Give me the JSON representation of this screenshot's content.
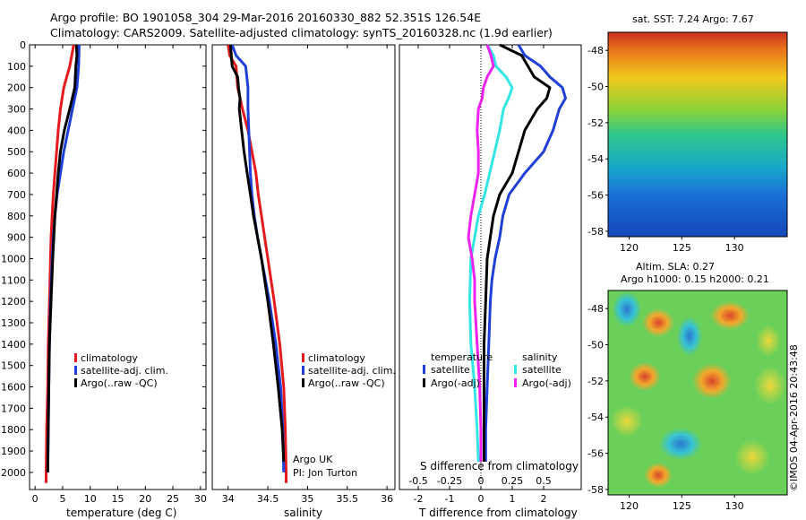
{
  "header": {
    "line1": "Argo profile: BO 1901058_304 29-Mar-2016 20160330_882 52.351S 126.54E",
    "line2": "Climatology: CARS2009. Satellite-adjusted climatology: synTS_20160328.nc (1.9d earlier)"
  },
  "colors": {
    "climatology": "#e41a1c",
    "satellite": "#1f3fd6",
    "argo": "#000000",
    "sat_s": "#33e6e6",
    "argo_s": "#ee22ee"
  },
  "chart_data": [
    {
      "type": "line",
      "id": "temperature",
      "xlabel": "temperature (deg C)",
      "ylabel": "",
      "xlim": [
        -1,
        31
      ],
      "ylim": [
        2080,
        0
      ],
      "x_ticks": [
        0,
        5,
        10,
        15,
        20,
        25,
        30
      ],
      "y_ticks": [
        0,
        100,
        200,
        300,
        400,
        500,
        600,
        700,
        800,
        900,
        1000,
        1100,
        1200,
        1300,
        1400,
        1500,
        1600,
        1700,
        1800,
        1900,
        2000
      ],
      "legend": [
        "climatology",
        "satellite-adj. clim.",
        "Argo(..raw -QC)"
      ],
      "series": [
        {
          "name": "climatology",
          "color": "#e41a1c",
          "depth": [
            0,
            100,
            200,
            300,
            400,
            500,
            600,
            700,
            800,
            900,
            1000,
            1200,
            1400,
            1600,
            1700,
            1800,
            2000,
            2050
          ],
          "values": [
            7.0,
            6.3,
            5.2,
            4.6,
            4.2,
            3.9,
            3.6,
            3.3,
            3.1,
            2.9,
            2.8,
            2.6,
            2.4,
            2.3,
            2.2,
            2.1,
            2.0,
            2.0
          ]
        },
        {
          "name": "satellite-adj. clim.",
          "color": "#1f3fd6",
          "depth": [
            0,
            100,
            200,
            300,
            400,
            500,
            600,
            700,
            800,
            900,
            1000,
            1200,
            1400,
            1600,
            1800,
            2000
          ],
          "values": [
            8.0,
            7.9,
            7.6,
            6.8,
            6.0,
            5.2,
            4.6,
            4.0,
            3.6,
            3.3,
            3.1,
            2.8,
            2.6,
            2.5,
            2.4,
            2.3
          ]
        },
        {
          "name": "Argo(..raw -QC)",
          "color": "#000000",
          "depth": [
            0,
            50,
            100,
            200,
            300,
            400,
            500,
            600,
            700,
            800,
            900,
            1000,
            1200,
            1400,
            1600,
            1800,
            2000
          ],
          "values": [
            7.5,
            7.6,
            7.4,
            7.2,
            6.3,
            5.3,
            4.6,
            4.2,
            3.9,
            3.6,
            3.4,
            3.2,
            2.9,
            2.6,
            2.5,
            2.4,
            2.3
          ]
        }
      ]
    },
    {
      "type": "line",
      "id": "salinity",
      "xlabel": "salinity",
      "ylabel": "",
      "xlim": [
        33.8,
        36.1
      ],
      "ylim": [
        2080,
        0
      ],
      "x_ticks": [
        34,
        34.5,
        35,
        35.5,
        36
      ],
      "x_tick_labels": [
        "34",
        "34.5",
        "35",
        "35.5",
        "36"
      ],
      "legend": [
        "climatology",
        "satellite-adj. clim.",
        "Argo(..raw -QC)"
      ],
      "annotations": [
        "Argo UK",
        "PI: Jon Turton"
      ],
      "series": [
        {
          "name": "climatology",
          "color": "#e41a1c",
          "depth": [
            0,
            50,
            100,
            200,
            300,
            400,
            500,
            600,
            700,
            800,
            900,
            1000,
            1200,
            1400,
            1600,
            1800,
            2000,
            2050
          ],
          "values": [
            34.0,
            34.02,
            34.1,
            34.12,
            34.18,
            34.25,
            34.3,
            34.35,
            34.38,
            34.42,
            34.46,
            34.5,
            34.58,
            34.65,
            34.7,
            34.72,
            34.73,
            34.73
          ]
        },
        {
          "name": "satellite-adj. clim.",
          "color": "#1f3fd6",
          "depth": [
            0,
            50,
            100,
            200,
            300,
            400,
            500,
            600,
            700,
            800,
            900,
            1000,
            1200,
            1400,
            1600,
            1800,
            2000
          ],
          "values": [
            34.05,
            34.1,
            34.22,
            34.25,
            34.25,
            34.26,
            34.27,
            34.28,
            34.3,
            34.33,
            34.37,
            34.42,
            34.52,
            34.6,
            34.66,
            34.69,
            34.7
          ]
        },
        {
          "name": "Argo(..raw -QC)",
          "color": "#000000",
          "depth": [
            0,
            50,
            100,
            150,
            200,
            250,
            300,
            400,
            500,
            600,
            700,
            800,
            900,
            1000,
            1200,
            1400,
            1600,
            1800,
            1950
          ],
          "values": [
            34.03,
            34.04,
            34.05,
            34.12,
            34.13,
            34.15,
            34.14,
            34.17,
            34.2,
            34.24,
            34.28,
            34.32,
            34.37,
            34.42,
            34.5,
            34.57,
            34.63,
            34.68,
            34.7
          ]
        }
      ]
    },
    {
      "type": "line",
      "id": "differences",
      "xlabel": "T difference from climatology",
      "x2label": "S difference from climatology",
      "xlim": [
        -2.6,
        3.2
      ],
      "ylim": [
        2080,
        0
      ],
      "x_ticks": [
        -2,
        -1,
        0,
        1,
        2
      ],
      "x2_ticks": [
        -0.5,
        -0.25,
        0,
        0.25,
        0.5
      ],
      "x2_tick_labels": [
        "-0.5",
        "-0.25",
        "0",
        "0.25",
        "0.5"
      ],
      "legend_temperature": {
        "title": "temperature",
        "items": [
          "satellite",
          "Argo(-adj)"
        ]
      },
      "legend_salinity": {
        "title": "salinity",
        "items": [
          "satellite",
          "Argo(-adj)"
        ]
      },
      "series": [
        {
          "name": "T satellite",
          "color": "#1f3fd6",
          "depth": [
            0,
            50,
            100,
            150,
            200,
            250,
            300,
            400,
            500,
            600,
            700,
            800,
            900,
            1000,
            1100,
            1200,
            1400,
            1600,
            1800,
            1950
          ],
          "values": [
            1.2,
            1.4,
            1.9,
            2.2,
            2.6,
            2.7,
            2.5,
            2.3,
            2.0,
            1.4,
            0.9,
            0.7,
            0.6,
            0.45,
            0.35,
            0.3,
            0.25,
            0.2,
            0.15,
            0.15
          ]
        },
        {
          "name": "T Argo(-adj)",
          "color": "#000000",
          "depth": [
            0,
            50,
            100,
            150,
            200,
            250,
            300,
            400,
            500,
            600,
            700,
            800,
            900,
            1000,
            1200,
            1400,
            1600,
            1800,
            1950
          ],
          "values": [
            0.6,
            1.3,
            1.5,
            1.7,
            2.2,
            2.1,
            1.8,
            1.4,
            1.2,
            1.0,
            0.6,
            0.4,
            0.3,
            0.2,
            0.15,
            0.1,
            0.1,
            0.1,
            0.1
          ]
        },
        {
          "name": "S satellite",
          "color": "#33e6e6",
          "depth": [
            0,
            50,
            100,
            150,
            200,
            250,
            300,
            400,
            500,
            600,
            700,
            800,
            900,
            1000,
            1200,
            1400,
            1600,
            1800,
            1950
          ],
          "values": [
            0.05,
            0.1,
            0.12,
            0.2,
            0.25,
            0.22,
            0.18,
            0.15,
            0.11,
            0.07,
            0.03,
            -0.02,
            -0.05,
            -0.08,
            -0.09,
            -0.08,
            -0.05,
            -0.03,
            -0.02
          ]
        },
        {
          "name": "S Argo(-adj)",
          "color": "#ee22ee",
          "depth": [
            0,
            50,
            100,
            150,
            200,
            250,
            300,
            400,
            500,
            600,
            700,
            800,
            900,
            1000,
            1100,
            1200,
            1400,
            1600,
            1800,
            1950
          ],
          "values": [
            0.05,
            0.08,
            0.1,
            0.05,
            0.02,
            0.01,
            -0.02,
            -0.03,
            -0.02,
            -0.02,
            -0.05,
            -0.08,
            -0.1,
            -0.07,
            -0.05,
            -0.05,
            -0.03,
            -0.01,
            0.0,
            0.0
          ]
        }
      ]
    }
  ],
  "sst_map": {
    "title": "sat. SST: 7.24  Argo: 7.67",
    "x_ticks": [
      120,
      125,
      130
    ],
    "y_ticks": [
      -48,
      -50,
      -52,
      -54,
      -56,
      -58
    ]
  },
  "sla_map": {
    "title_line1": "Altim. SLA: 0.27",
    "title_line2": "Argo h1000: 0.15 h2000: 0.21",
    "x_ticks": [
      120,
      125,
      130
    ],
    "y_ticks": [
      -48,
      -50,
      -52,
      -54,
      -56,
      -58
    ]
  },
  "footer": {
    "credit": "©IMOS 04-Apr-2016 20:43:48"
  }
}
